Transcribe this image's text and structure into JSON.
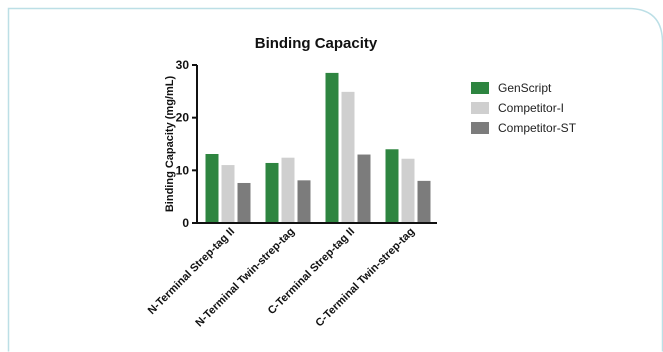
{
  "colors": {
    "frame": "#bcdfe6",
    "axis": "#111111"
  },
  "chart_data": {
    "type": "bar",
    "title": "Binding Capacity",
    "xlabel": "",
    "ylabel": "Binding Capacity (mg/mL)",
    "ylim": [
      0,
      30
    ],
    "yticks": [
      "0",
      "10",
      "20",
      "30"
    ],
    "grid": false,
    "legend_position": "right",
    "categories": [
      "N-Terminal Strep-tag II",
      "N-Terminal Twin-strep-tag",
      "C-Terminal Strep-tag II",
      "C-Terminal Twin-strep-tag"
    ],
    "series": [
      {
        "name": "GenScript",
        "color": "#2e8540",
        "values": [
          13.1,
          11.4,
          28.5,
          14.0
        ]
      },
      {
        "name": "Competitor-I",
        "color": "#cfcfcf",
        "values": [
          11.0,
          12.4,
          24.9,
          12.2
        ]
      },
      {
        "name": "Competitor-ST",
        "color": "#7c7c7c",
        "values": [
          7.6,
          8.1,
          13.0,
          8.0
        ]
      }
    ]
  }
}
